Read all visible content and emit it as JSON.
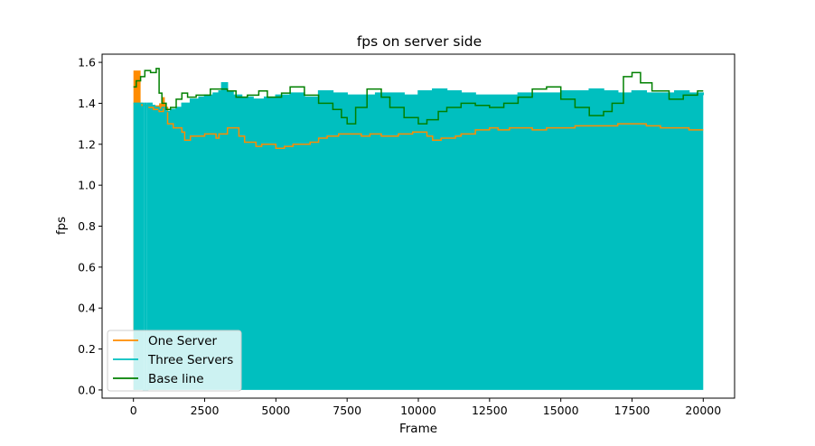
{
  "chart_data": {
    "type": "line",
    "title": "fps on server side",
    "xlabel": "Frame",
    "ylabel": "fps",
    "xlim": [
      -1100,
      21100
    ],
    "ylim": [
      -0.04,
      1.64
    ],
    "xticks": [
      0,
      2500,
      5000,
      7500,
      10000,
      12500,
      15000,
      17500,
      20000
    ],
    "xtick_labels": [
      "0",
      "2500",
      "5000",
      "7500",
      "10000",
      "12500",
      "15000",
      "17500",
      "20000"
    ],
    "yticks": [
      0.0,
      0.2,
      0.4,
      0.6,
      0.8,
      1.0,
      1.2,
      1.4,
      1.6
    ],
    "ytick_labels": [
      "0.0",
      "0.2",
      "0.4",
      "0.6",
      "0.8",
      "1.0",
      "1.2",
      "1.4",
      "1.6"
    ],
    "grid": false,
    "legend_position": "bottom-left",
    "fills": [
      {
        "name": "One Server",
        "color": "#ff8c00",
        "x": [
          0,
          50,
          200,
          250,
          350,
          450,
          500,
          650,
          900,
          1000,
          1100,
          1150
        ],
        "y": [
          1.56,
          1.56,
          1.56,
          0,
          0,
          0,
          1.38,
          1.39,
          1.4,
          1.43,
          1.4,
          0
        ]
      },
      {
        "name": "Three Servers",
        "color": "#00bfbf",
        "x": [
          0,
          50,
          350,
          400,
          450,
          500,
          650,
          750,
          900,
          1000,
          1150,
          1300,
          1500,
          1700,
          2000,
          2300,
          2500,
          2800,
          3000,
          3100,
          3300,
          3500,
          3800,
          4200,
          4600,
          5000,
          5500,
          6000,
          6500,
          7000,
          7500,
          8000,
          8500,
          9000,
          9500,
          10000,
          10500,
          11000,
          11500,
          12000,
          12500,
          13000,
          13500,
          14000,
          14500,
          15000,
          15500,
          16000,
          16500,
          17000,
          17500,
          18000,
          18500,
          19000,
          19500,
          20000
        ],
        "y": [
          1.4,
          1.4,
          0,
          1.4,
          0,
          1.4,
          1.39,
          1.38,
          1.37,
          1.38,
          1.36,
          1.37,
          1.38,
          1.4,
          1.42,
          1.43,
          1.44,
          1.45,
          1.46,
          1.5,
          1.46,
          1.44,
          1.43,
          1.42,
          1.43,
          1.44,
          1.45,
          1.43,
          1.46,
          1.45,
          1.44,
          1.44,
          1.45,
          1.45,
          1.44,
          1.46,
          1.47,
          1.46,
          1.45,
          1.44,
          1.44,
          1.44,
          1.45,
          1.45,
          1.45,
          1.46,
          1.46,
          1.47,
          1.46,
          1.45,
          1.46,
          1.45,
          1.45,
          1.46,
          1.45,
          1.44
        ]
      }
    ],
    "series": [
      {
        "name": "One Server",
        "color": "#ff8c00",
        "x": [
          0,
          100,
          200,
          300,
          500,
          700,
          900,
          1050,
          1200,
          1400,
          1700,
          1800,
          2000,
          2500,
          2900,
          3000,
          3300,
          3700,
          3900,
          4300,
          4500,
          5000,
          5300,
          5600,
          6200,
          6500,
          6800,
          7200,
          7700,
          8000,
          8300,
          8700,
          9300,
          9800,
          10300,
          10500,
          10800,
          11300,
          11500,
          12000,
          12500,
          12800,
          13200,
          14000,
          14500,
          15000,
          15500,
          16000,
          16500,
          17000,
          17500,
          18000,
          18500,
          19000,
          19500,
          20000
        ],
        "y": [
          1.4,
          1.41,
          1.4,
          1.39,
          1.38,
          1.37,
          1.36,
          1.38,
          1.3,
          1.28,
          1.26,
          1.22,
          1.24,
          1.25,
          1.23,
          1.25,
          1.28,
          1.24,
          1.21,
          1.19,
          1.2,
          1.18,
          1.19,
          1.2,
          1.21,
          1.23,
          1.24,
          1.25,
          1.25,
          1.24,
          1.25,
          1.24,
          1.25,
          1.26,
          1.24,
          1.22,
          1.23,
          1.24,
          1.25,
          1.27,
          1.28,
          1.27,
          1.28,
          1.27,
          1.28,
          1.28,
          1.29,
          1.29,
          1.29,
          1.3,
          1.3,
          1.29,
          1.28,
          1.28,
          1.27,
          1.27
        ]
      },
      {
        "name": "Three Servers",
        "color": "#00bfbf",
        "x": [
          0,
          50,
          350,
          400,
          450,
          500,
          650,
          750,
          900,
          1000,
          1150,
          1300,
          1500,
          1700,
          2000,
          2300,
          2500,
          2800,
          3000,
          3100,
          3300,
          3500,
          3800,
          4200,
          4600,
          5000,
          5500,
          6000,
          6500,
          7000,
          7500,
          8000,
          8500,
          9000,
          9500,
          10000,
          10500,
          11000,
          11500,
          12000,
          12500,
          13000,
          13500,
          14000,
          14500,
          15000,
          15500,
          16000,
          16500,
          17000,
          17500,
          18000,
          18500,
          19000,
          19500,
          20000
        ],
        "y": [
          1.4,
          1.4,
          0,
          1.4,
          0,
          1.4,
          1.39,
          1.38,
          1.37,
          1.38,
          1.36,
          1.37,
          1.38,
          1.4,
          1.42,
          1.43,
          1.44,
          1.45,
          1.46,
          1.5,
          1.46,
          1.44,
          1.43,
          1.42,
          1.43,
          1.44,
          1.45,
          1.43,
          1.46,
          1.45,
          1.44,
          1.44,
          1.45,
          1.45,
          1.44,
          1.46,
          1.47,
          1.46,
          1.45,
          1.44,
          1.44,
          1.44,
          1.45,
          1.45,
          1.45,
          1.46,
          1.46,
          1.47,
          1.46,
          1.45,
          1.46,
          1.45,
          1.45,
          1.46,
          1.45,
          1.44
        ]
      },
      {
        "name": "Base line",
        "color": "#008000",
        "x": [
          0,
          100,
          250,
          400,
          600,
          800,
          900,
          1000,
          1150,
          1300,
          1500,
          1700,
          1900,
          2200,
          2700,
          3300,
          3600,
          4000,
          4400,
          4700,
          5200,
          5500,
          6000,
          6500,
          7000,
          7300,
          7500,
          7800,
          8200,
          8700,
          9000,
          9500,
          10000,
          10300,
          10700,
          11000,
          11500,
          12000,
          12500,
          13000,
          13500,
          14000,
          14500,
          15000,
          15500,
          16000,
          16500,
          16800,
          17200,
          17500,
          17800,
          18200,
          18800,
          19300,
          19800,
          20000
        ],
        "y": [
          1.48,
          1.51,
          1.53,
          1.56,
          1.55,
          1.57,
          1.45,
          1.4,
          1.37,
          1.38,
          1.42,
          1.45,
          1.43,
          1.44,
          1.47,
          1.46,
          1.43,
          1.44,
          1.46,
          1.43,
          1.45,
          1.48,
          1.44,
          1.4,
          1.37,
          1.33,
          1.3,
          1.38,
          1.47,
          1.43,
          1.38,
          1.33,
          1.3,
          1.32,
          1.36,
          1.38,
          1.4,
          1.39,
          1.38,
          1.4,
          1.43,
          1.47,
          1.48,
          1.42,
          1.38,
          1.34,
          1.36,
          1.4,
          1.53,
          1.55,
          1.5,
          1.46,
          1.42,
          1.44,
          1.46,
          1.46
        ]
      }
    ]
  }
}
